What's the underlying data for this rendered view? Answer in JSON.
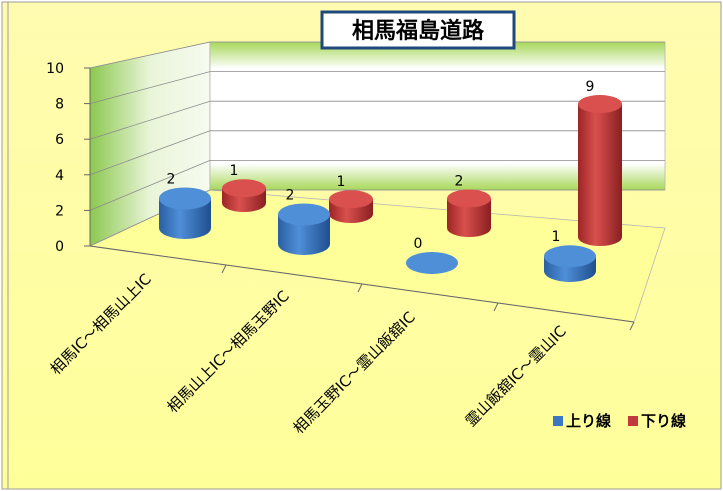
{
  "chart_data": {
    "type": "bar",
    "style": "3d-cylinder",
    "title": "相馬福島道路",
    "categories": [
      "相馬IC～相馬山上IC",
      "相馬山上IC～相馬玉野IC",
      "相馬玉野IC～霊山飯舘IC",
      "霊山飯舘IC～霊山IC"
    ],
    "series": [
      {
        "name": "上り線",
        "values": [
          2,
          2,
          0,
          1
        ],
        "color": "#3b78c4"
      },
      {
        "name": "下り線",
        "values": [
          1,
          1,
          2,
          9
        ],
        "color": "#c0393b"
      }
    ],
    "ylim": [
      0,
      10
    ],
    "yticks": [
      "0",
      "2",
      "4",
      "6",
      "8",
      "10"
    ],
    "grid": true,
    "legend": "bottom-right",
    "background": "#ffff99",
    "title_border": "#1f497d"
  }
}
